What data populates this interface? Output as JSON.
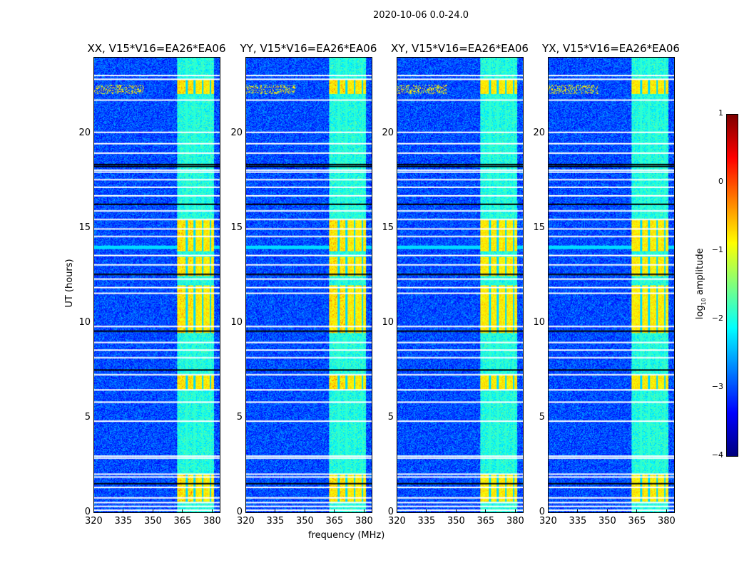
{
  "chart_data": {
    "type": "heatmap",
    "suptitle": "2020-10-06 0.0-24.0",
    "xlabel": "frequency (MHz)",
    "ylabel": "UT (hours)",
    "xlim": [
      320,
      384
    ],
    "ylim": [
      0,
      24
    ],
    "xticks": [
      320,
      335,
      350,
      365,
      380
    ],
    "yticks": [
      0,
      5,
      10,
      15,
      20
    ],
    "panels": [
      {
        "title": "XX, V15*V16=EA26*EA06"
      },
      {
        "title": "YY, V15*V16=EA26*EA06"
      },
      {
        "title": "XY, V15*V16=EA26*EA06"
      },
      {
        "title": "YX, V15*V16=EA26*EA06"
      }
    ],
    "colorbar": {
      "label": "log10 amplitude",
      "label_main": "log",
      "label_sub": "10",
      "label_rest": " amplitude",
      "range": [
        -4,
        1
      ],
      "ticks": [
        "1",
        "0",
        "−1",
        "−2",
        "−3",
        "−4"
      ],
      "colormap": "jet"
    },
    "features": {
      "background_log_amp": -3.0,
      "rfi_band_mhz": [
        362,
        381
      ],
      "rfi_band_log_amp": -2.0,
      "strong_rfi_hours": [
        [
          22.1,
          22.9
        ],
        [
          13.8,
          15.5
        ],
        [
          12.5,
          13.5
        ],
        [
          9.5,
          12.0
        ],
        [
          6.5,
          7.3
        ],
        [
          0.6,
          2.0
        ]
      ],
      "strong_rfi_log_amp": -0.8,
      "flagged_hours": [
        0.15,
        0.35,
        0.55,
        0.8,
        1.35,
        1.9,
        2.05,
        2.9,
        3.0,
        4.85,
        5.85,
        6.5,
        7.3,
        8.2,
        8.6,
        9.0,
        9.85,
        11.6,
        11.9,
        12.35,
        13.1,
        13.6,
        14.6,
        15.0,
        15.5,
        15.95,
        16.75,
        17.2,
        17.6,
        18.0,
        18.1,
        19.0,
        19.5,
        20.1,
        21.8,
        22.9,
        23.1
      ],
      "zero_hours": [
        1.55,
        7.55,
        9.6,
        12.6,
        16.3,
        18.3,
        18.4
      ]
    }
  }
}
